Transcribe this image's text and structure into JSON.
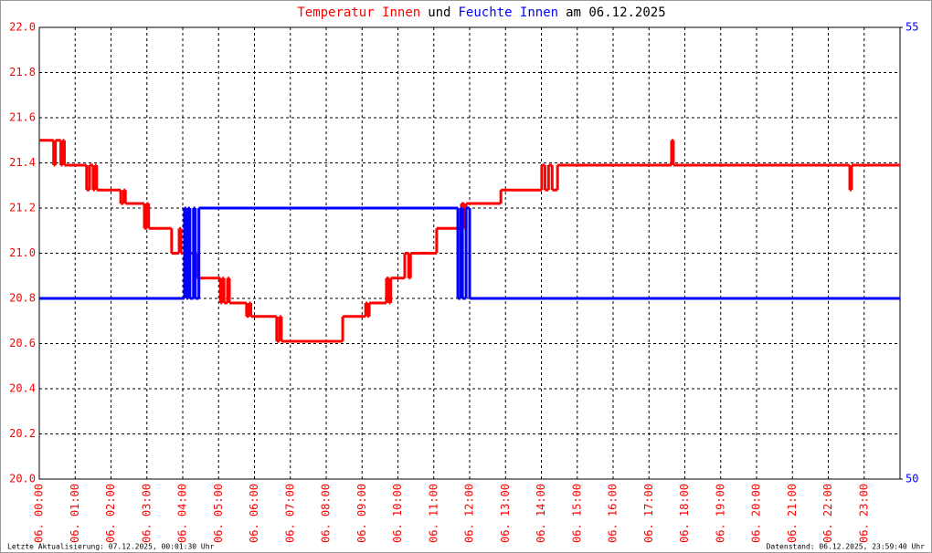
{
  "chart_data": {
    "type": "step-line",
    "title": [
      "und",
      "am 06.12.2025"
    ],
    "x": null,
    "xlim": [
      0,
      24
    ],
    "xticks": [
      {
        "value": 0,
        "label": "06. 00:00"
      },
      {
        "value": 1,
        "label": "06. 01:00"
      },
      {
        "value": 2,
        "label": "06. 02:00"
      },
      {
        "value": 3,
        "label": "06. 03:00"
      },
      {
        "value": 4,
        "label": "06. 04:00"
      },
      {
        "value": 5,
        "label": "06. 05:00"
      },
      {
        "value": 6,
        "label": "06. 06:00"
      },
      {
        "value": 7,
        "label": "06. 07:00"
      },
      {
        "value": 8,
        "label": "06. 08:00"
      },
      {
        "value": 9,
        "label": "06. 09:00"
      },
      {
        "value": 10,
        "label": "06. 10:00"
      },
      {
        "value": 11,
        "label": "06. 11:00"
      },
      {
        "value": 12,
        "label": "06. 12:00"
      },
      {
        "value": 13,
        "label": "06. 13:00"
      },
      {
        "value": 14,
        "label": "06. 14:00"
      },
      {
        "value": 15,
        "label": "06. 15:00"
      },
      {
        "value": 16,
        "label": "06. 16:00"
      },
      {
        "value": 17,
        "label": "06. 17:00"
      },
      {
        "value": 18,
        "label": "06. 18:00"
      },
      {
        "value": 19,
        "label": "06. 19:00"
      },
      {
        "value": 20,
        "label": "06. 20:00"
      },
      {
        "value": 21,
        "label": "06. 21:00"
      },
      {
        "value": 22,
        "label": "06. 22:00"
      },
      {
        "value": 23,
        "label": "06. 23:00"
      }
    ],
    "ylim": [
      20,
      22
    ],
    "yticks": [
      {
        "value": 20,
        "label": "20.0"
      },
      {
        "value": 20.2,
        "label": "20.2"
      },
      {
        "value": 20.4,
        "label": "20.4"
      },
      {
        "value": 20.6,
        "label": "20.6"
      },
      {
        "value": 20.8,
        "label": "20.8"
      },
      {
        "value": 21,
        "label": "21.0"
      },
      {
        "value": 21.2,
        "label": "21.2"
      },
      {
        "value": 21.4,
        "label": "21.4"
      },
      {
        "value": 21.6,
        "label": "21.6"
      },
      {
        "value": 21.8,
        "label": "21.8"
      },
      {
        "value": 22,
        "label": "22.0"
      }
    ],
    "y2lim": [
      50,
      55
    ],
    "y2ticks": [
      50,
      55
    ],
    "grid": true,
    "series": [
      {
        "name": "Temperatur Innen",
        "color": "#ff0000",
        "x": [
          0,
          0.4,
          0.45,
          0.6,
          0.65,
          0.7,
          1.32,
          1.4,
          1.5,
          1.55,
          1.6,
          2.27,
          2.35,
          2.4,
          2.93,
          3.0,
          3.05,
          3.69,
          3.9,
          3.95,
          4.4,
          5.05,
          5.1,
          5.15,
          5.25,
          5.3,
          5.78,
          5.85,
          5.9,
          6.62,
          6.7,
          6.75,
          8.46,
          9.1,
          9.15,
          9.2,
          9.68,
          9.75,
          9.8,
          10.19,
          10.3,
          10.35,
          11.08,
          11.77,
          11.85,
          11.9,
          12.87,
          14.01,
          14.1,
          14.2,
          14.3,
          14.45,
          17.63,
          17.68,
          22.6,
          22.65
        ],
        "values": [
          21.5,
          21.39,
          21.5,
          21.39,
          21.5,
          21.39,
          21.28,
          21.39,
          21.28,
          21.39,
          21.28,
          21.22,
          21.28,
          21.22,
          21.11,
          21.22,
          21.11,
          21.0,
          21.11,
          21.0,
          20.89,
          20.78,
          20.89,
          20.78,
          20.89,
          20.78,
          20.72,
          20.78,
          20.72,
          20.61,
          20.72,
          20.61,
          20.72,
          20.78,
          20.72,
          20.78,
          20.89,
          20.78,
          20.89,
          21.0,
          20.89,
          21.0,
          21.11,
          21.22,
          21.11,
          21.22,
          21.28,
          21.39,
          21.28,
          21.39,
          21.28,
          21.39,
          21.5,
          21.39,
          21.28,
          21.39
        ]
      },
      {
        "name": "Feuchte Innen",
        "color": "#0000ff",
        "axis": "y2",
        "x": [
          0,
          4.05,
          4.1,
          4.15,
          4.2,
          4.3,
          4.35,
          4.45,
          11.67,
          11.75,
          11.8,
          11.9,
          12.0
        ],
        "values": [
          52,
          53,
          52,
          53,
          52,
          53,
          52,
          53,
          52,
          53,
          52,
          53,
          52
        ]
      }
    ],
    "footer_left": "Letzte Aktualisierung: 07.12.2025, 00:01:30 Uhr",
    "footer_right": "Datenstand: 06.12.2025, 23:59:40 Uhr"
  }
}
